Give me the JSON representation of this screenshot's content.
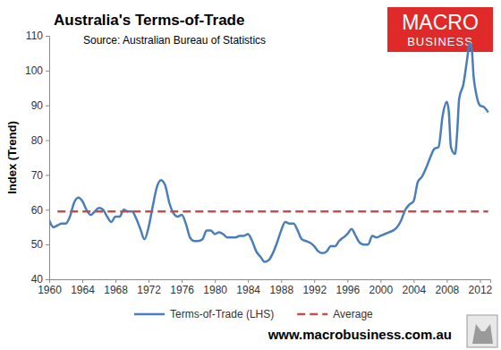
{
  "chart_data": {
    "type": "line",
    "title": "Australia's Terms-of-Trade",
    "subtitle": "Source: Australian Bureau of Statistics",
    "logo_text": [
      "MACRO",
      "BUSINESS"
    ],
    "footer": "www.macrobusiness.com.au",
    "y_label": "Index (Trend)",
    "xlim": [
      1960,
      2013.25
    ],
    "xticks": [
      1960,
      1964,
      1968,
      1972,
      1976,
      1980,
      1984,
      1988,
      1992,
      1996,
      2000,
      2004,
      2008,
      2012
    ],
    "ylim": [
      40,
      110
    ],
    "yticks": [
      40,
      50,
      60,
      70,
      80,
      90,
      100,
      110
    ],
    "grid": false,
    "legend": "bottom",
    "series": [
      {
        "name": "Terms-of-Trade (LHS)",
        "color": "#4a7ebb",
        "line_style": "solid",
        "x": [
          1960,
          1960.5,
          1961,
          1961.5,
          1962,
          1962.5,
          1963,
          1963.5,
          1964,
          1964.5,
          1965,
          1965.5,
          1966,
          1966.5,
          1967,
          1967.5,
          1968,
          1968.5,
          1969,
          1969.5,
          1970,
          1970.5,
          1971,
          1971.5,
          1972,
          1972.5,
          1973,
          1973.5,
          1974,
          1974.5,
          1975,
          1975.5,
          1976,
          1976.5,
          1977,
          1977.5,
          1978,
          1978.5,
          1979,
          1979.5,
          1980,
          1980.5,
          1981,
          1981.5,
          1982,
          1982.5,
          1983,
          1983.5,
          1984,
          1984.5,
          1985,
          1985.5,
          1986,
          1986.5,
          1987,
          1987.5,
          1988,
          1988.5,
          1989,
          1989.5,
          1990,
          1990.5,
          1991,
          1991.5,
          1992,
          1992.5,
          1993,
          1993.5,
          1994,
          1994.5,
          1995,
          1995.5,
          1996,
          1996.5,
          1997,
          1997.5,
          1998,
          1998.5,
          1999,
          1999.5,
          2000,
          2000.5,
          2001,
          2001.5,
          2002,
          2002.5,
          2003,
          2003.5,
          2004,
          2004.5,
          2005,
          2005.5,
          2006,
          2006.5,
          2007,
          2007.5,
          2008,
          2008.25,
          2008.5,
          2009,
          2009.25,
          2009.5,
          2010,
          2010.5,
          2010.75,
          2011,
          2011.25,
          2011.5,
          2012,
          2012.5,
          2013
        ],
        "values": [
          57,
          55,
          55.5,
          56,
          56,
          58,
          62,
          63.5,
          62.5,
          60,
          58.5,
          59.5,
          60.5,
          60,
          58,
          56.5,
          58,
          58,
          60,
          59.5,
          59.5,
          57.5,
          54.5,
          51.5,
          55,
          61,
          66.5,
          68.5,
          67,
          62,
          59,
          58,
          58.5,
          56,
          52,
          51,
          51,
          51.5,
          54,
          54,
          53,
          53.5,
          53,
          52,
          52,
          52,
          52.5,
          52.5,
          53,
          51,
          48,
          46.5,
          45,
          45.5,
          47.5,
          50.5,
          54,
          56.5,
          56,
          56,
          54,
          51.5,
          51,
          50.5,
          49.5,
          48,
          47.5,
          48,
          49.5,
          49.5,
          51,
          52,
          53,
          54.5,
          52.5,
          50.5,
          50,
          50,
          52.5,
          52,
          52.5,
          53,
          53.5,
          54,
          55,
          57,
          60,
          61.5,
          62.5,
          68,
          69.5,
          72,
          75,
          77.5,
          78,
          87,
          91,
          88,
          78,
          76,
          82,
          92,
          96,
          104,
          108,
          106.5,
          98,
          94,
          90,
          89.5,
          88
        ]
      },
      {
        "name": "Average",
        "color": "#c0504d",
        "line_style": "dashed",
        "x": [
          1961,
          2013
        ],
        "values": [
          59.5,
          59.5
        ]
      }
    ]
  }
}
